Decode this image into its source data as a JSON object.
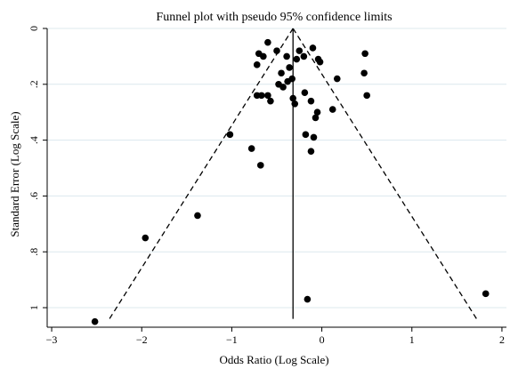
{
  "chart_data": {
    "type": "scatter",
    "title": "Funnel plot with pseudo 95% confidence limits",
    "xlabel": "Odds Ratio (Log Scale)",
    "ylabel": "Standard Error (Log Scale)",
    "xlim": [
      -3.05,
      2.05
    ],
    "ylim": [
      0,
      1.07
    ],
    "y_reversed": true,
    "x_ticks": [
      -3,
      -2,
      -1,
      0,
      1,
      2
    ],
    "x_tick_labels": [
      "−3",
      "−2",
      "−1",
      "0",
      "1",
      "2"
    ],
    "y_ticks": [
      0,
      0.2,
      0.4,
      0.6,
      0.8,
      1
    ],
    "y_tick_labels": [
      "0",
      ".2",
      ".4",
      ".6",
      ".8",
      "1"
    ],
    "grid": "horizontal",
    "pooled_estimate": -0.32,
    "ci_limits": {
      "z": 1.96,
      "se_max": 1.04
    },
    "colors": {
      "points": "#000000",
      "grid": "#dce8ee",
      "lines": "#000000"
    },
    "points": [
      [
        -0.6,
        0.05
      ],
      [
        -0.65,
        0.1
      ],
      [
        -0.5,
        0.08
      ],
      [
        -0.7,
        0.09
      ],
      [
        -0.72,
        0.13
      ],
      [
        -0.39,
        0.1
      ],
      [
        -0.36,
        0.14
      ],
      [
        -0.45,
        0.16
      ],
      [
        -0.48,
        0.2
      ],
      [
        -0.38,
        0.19
      ],
      [
        -0.43,
        0.21
      ],
      [
        -0.33,
        0.18
      ],
      [
        -0.25,
        0.08
      ],
      [
        -0.2,
        0.1
      ],
      [
        -0.1,
        0.07
      ],
      [
        -0.04,
        0.11
      ],
      [
        -0.02,
        0.12
      ],
      [
        -0.28,
        0.11
      ],
      [
        0.48,
        0.09
      ],
      [
        0.47,
        0.16
      ],
      [
        0.17,
        0.18
      ],
      [
        0.5,
        0.24
      ],
      [
        -0.72,
        0.24
      ],
      [
        -0.67,
        0.24
      ],
      [
        -0.6,
        0.24
      ],
      [
        -0.57,
        0.26
      ],
      [
        -0.32,
        0.25
      ],
      [
        -0.3,
        0.27
      ],
      [
        -0.19,
        0.23
      ],
      [
        -0.12,
        0.26
      ],
      [
        -0.05,
        0.3
      ],
      [
        -0.07,
        0.32
      ],
      [
        0.12,
        0.29
      ],
      [
        -1.02,
        0.38
      ],
      [
        -0.78,
        0.43
      ],
      [
        -0.18,
        0.38
      ],
      [
        -0.09,
        0.39
      ],
      [
        -0.12,
        0.44
      ],
      [
        -0.68,
        0.49
      ],
      [
        -1.38,
        0.67
      ],
      [
        -1.96,
        0.75
      ],
      [
        -0.16,
        0.97
      ],
      [
        1.82,
        0.95
      ],
      [
        -2.52,
        1.05
      ]
    ]
  }
}
